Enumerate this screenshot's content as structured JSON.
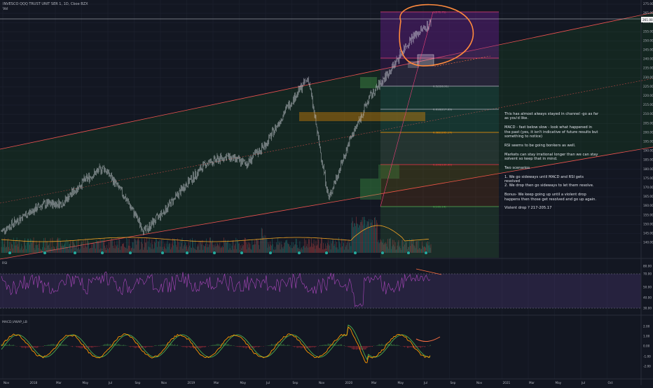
{
  "header": {
    "symbol_line": "INVESCO QQQ TRUST UNIT SER 1, 1D, Cboe BZX",
    "sub_line": "Vol"
  },
  "panes": {
    "rsi_label": "RSI",
    "macd_label": "MACD,VWAP_LB"
  },
  "price_axis": {
    "ticks": [
      "275.00",
      "265.00",
      "260.00",
      "255.00",
      "250.00",
      "245.00",
      "240.00",
      "235.00",
      "230.00",
      "225.00",
      "220.00",
      "215.00",
      "210.00",
      "205.00",
      "200.00",
      "195.00",
      "190.00",
      "185.00",
      "180.00",
      "175.00",
      "170.00",
      "165.00",
      "160.00",
      "155.00",
      "150.00",
      "145.00",
      "140.00"
    ],
    "last_price": "261.00",
    "last_price_color": "#f2f2f2"
  },
  "rsi_axis": {
    "ticks": [
      "80.00",
      "70.00",
      "50.00",
      "40.00",
      "30.00"
    ]
  },
  "macd_axis": {
    "ticks": [
      "2.00",
      "1.00",
      "0.00",
      "-1.00",
      "-2.00"
    ]
  },
  "time_axis": {
    "ticks": [
      "Nov",
      "2018",
      "Mar",
      "May",
      "Jul",
      "Sep",
      "Nov",
      "2019",
      "Mar",
      "May",
      "Jul",
      "Sep",
      "Nov",
      "2020",
      "Mar",
      "May",
      "Jul",
      "Sep",
      "Nov",
      "2021",
      "Mar",
      "May",
      "Jul",
      "Oct"
    ]
  },
  "fib_levels": [
    {
      "label": "1(272.71)",
      "color": "#ec407a"
    },
    {
      "label": "0.5(228.91)",
      "color": "#b2b5be"
    },
    {
      "label": "0.618(217.69)",
      "color": "#b2b5be"
    },
    {
      "label": "0.382(205.17)",
      "color": "#ff9800"
    },
    {
      "label": "0.236(190.00)",
      "color": "#f23645"
    },
    {
      "label": "0(165.14)",
      "color": "#4caf50"
    }
  ],
  "notes": [
    "This has almost always stayed in channel -go as far as you'd like.",
    "MACD - fast below slow - look what happened in the past (yes, it isn't indicative of future results but something to notice)",
    "RSI seems to be going bonkers as well.",
    "Markets can stay irrational longer than we can stay solvent so keep that in mind.",
    "Two scenarios",
    "1. We go sideways until MACD and RSI gets resolved\n2. We drop then go sideways to let them resolve.",
    "Bonus- We keep going up until a violent drop happens then those get resolved and go up again.",
    "Violent drop ? 217-205.17"
  ],
  "colors": {
    "background": "#131722",
    "candles": "#d1d4dc",
    "channel_line": "#ef5350",
    "channel_fill": "#1b5e20",
    "fib_fill_top": "#7b1fa2",
    "rsi_line": "#ab47bc",
    "ma_line": "#f5a623",
    "macd_fast": "#ff9800",
    "macd_slow": "#4caf50",
    "hist_pos": "#4caf50",
    "hist_neg": "#f23645",
    "circle_annotation": "#ff8a3d"
  },
  "chart_data": {
    "type": "line",
    "title": "INVESCO QQQ TRUST UNIT SER 1, 1D, Cboe BZX",
    "xlabel": "",
    "ylabel": "",
    "ylim": [
      138,
      277
    ],
    "x": [
      "2017-11",
      "2018-01",
      "2018-03",
      "2018-05",
      "2018-07",
      "2018-09",
      "2018-10",
      "2018-12",
      "2019-01",
      "2019-03",
      "2019-05",
      "2019-07",
      "2019-09",
      "2019-11",
      "2020-01",
      "2020-02",
      "2020-03",
      "2020-04",
      "2020-05",
      "2020-06",
      "2020-07",
      "2020-07-15"
    ],
    "series": [
      {
        "values": [
          150,
          158,
          165,
          166,
          178,
          186,
          170,
          150,
          162,
          176,
          188,
          192,
          188,
          200,
          220,
          236,
          168,
          200,
          225,
          240,
          258,
          267
        ]
      }
    ],
    "rsi": {
      "range": [
        30,
        80
      ],
      "overbought": 70,
      "oversold": 30
    },
    "macd": {
      "range": [
        -2.5,
        2.5
      ]
    }
  }
}
